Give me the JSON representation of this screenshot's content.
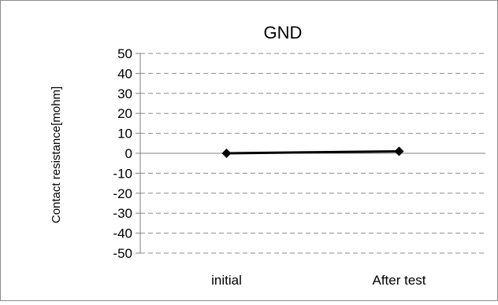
{
  "chart_data": {
    "type": "line",
    "title": "GND",
    "xlabel": "",
    "ylabel": "Contact resistance[mohm]",
    "categories": [
      "initial",
      "After test"
    ],
    "series": [
      {
        "values": [
          0,
          1
        ],
        "color": "#000000",
        "marker": "diamond"
      }
    ],
    "ylim": [
      -50,
      50
    ],
    "yticks": [
      "50",
      "40",
      "30",
      "20",
      "10",
      "0",
      "-10",
      "-20",
      "-30",
      "-40",
      "-50"
    ],
    "grid": true,
    "legend": "none"
  }
}
